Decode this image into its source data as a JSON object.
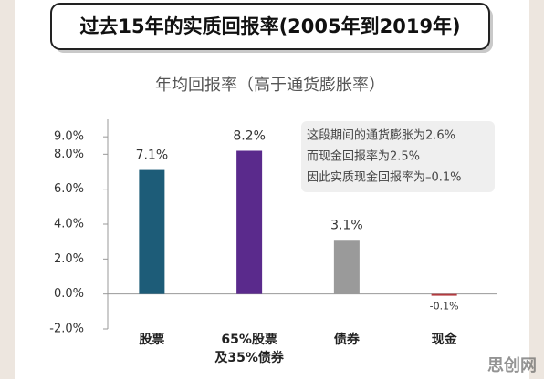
{
  "chart_data": {
    "type": "bar",
    "title": "过去15年的实质回报率(2005年到2019年)",
    "subtitle": "年均回报率（高于通货膨胀率）",
    "categories": [
      "股票",
      "65%股票\n及35%债券",
      "债券",
      "现金"
    ],
    "values": [
      7.1,
      8.2,
      3.1,
      -0.1
    ],
    "value_labels": [
      "7.1%",
      "8.2%",
      "3.1%",
      "-0.1%"
    ],
    "colors": [
      "#1d5c78",
      "#5a2a8c",
      "#9a9a9a",
      "#b23a3f"
    ],
    "ylim": [
      -2,
      10
    ],
    "yticks": [
      {
        "value": 9,
        "label": "9.0%"
      },
      {
        "value": 8,
        "label": "8.0%"
      },
      {
        "value": 6,
        "label": "6.0%"
      },
      {
        "value": 4,
        "label": "4.0%"
      },
      {
        "value": 2,
        "label": "2.0%"
      },
      {
        "value": 0,
        "label": "0.0%"
      },
      {
        "value": -2,
        "label": "-2.0%"
      }
    ],
    "annotations": [
      "这段期间的通货膨胀为2.6%",
      "而现金回报率为2.5%",
      "因此实质现金回报率为–0.1%"
    ],
    "watermark": "思创网"
  }
}
